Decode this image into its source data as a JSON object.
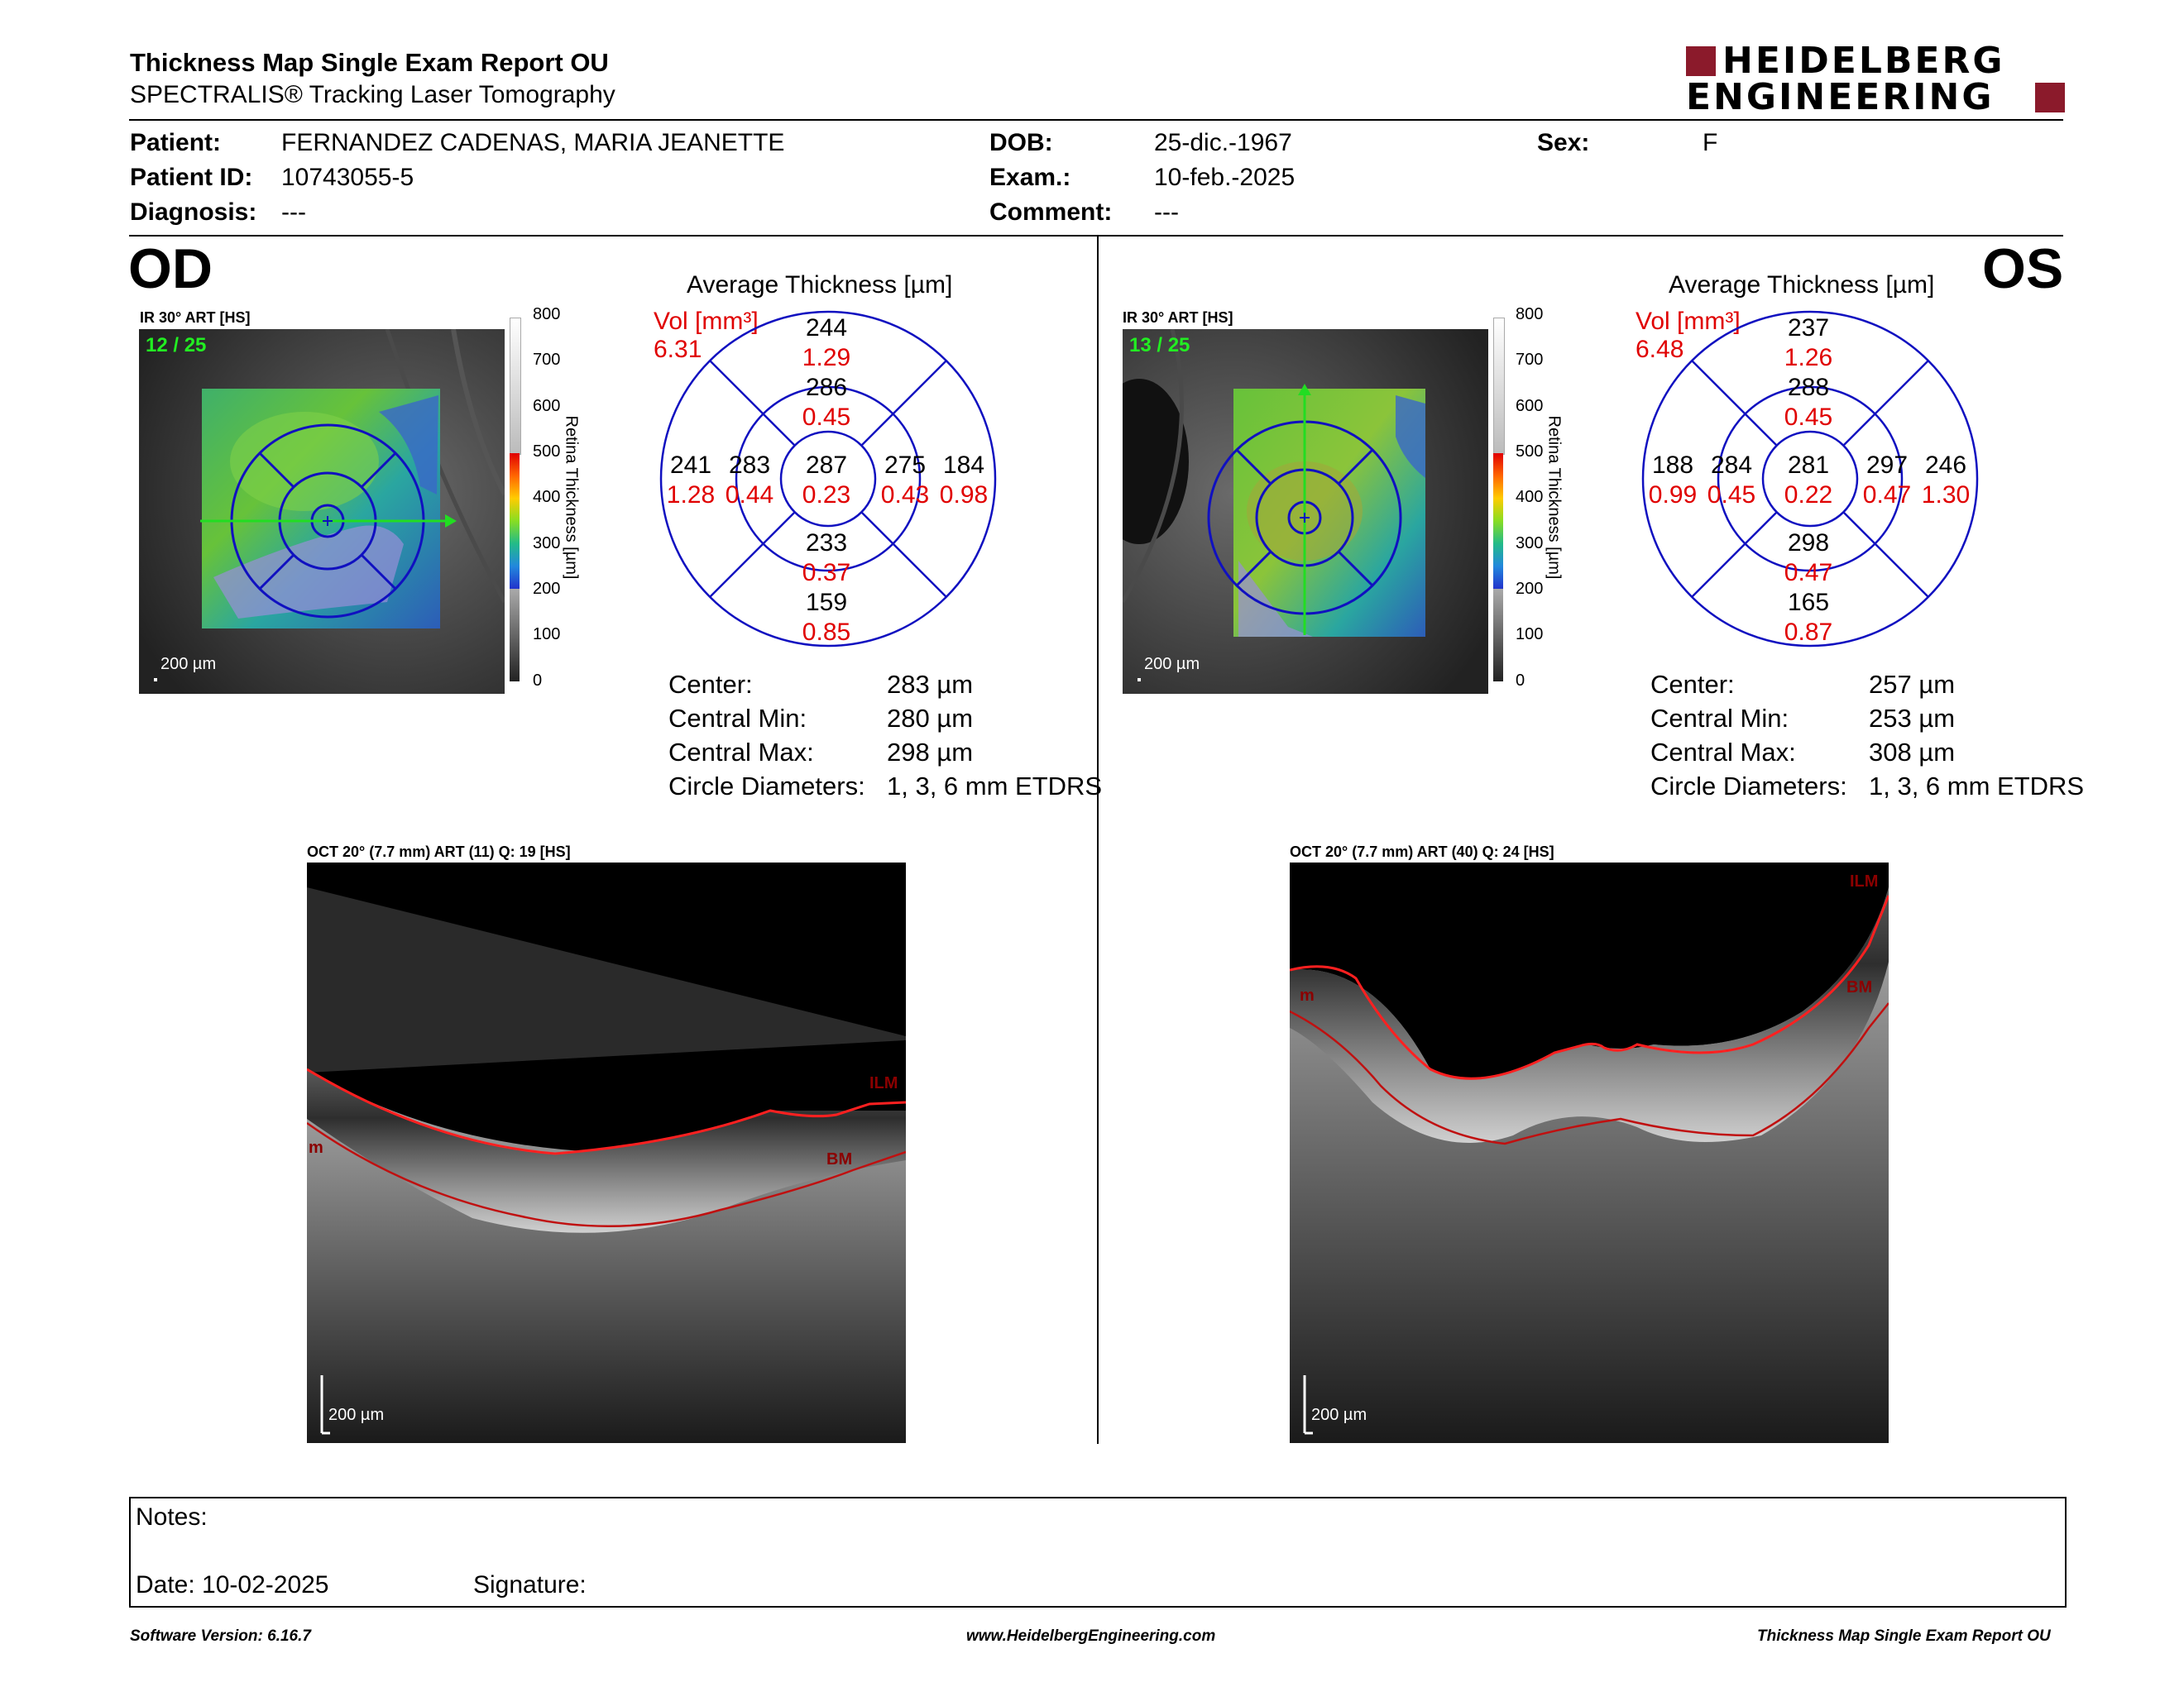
{
  "header": {
    "title": "Thickness Map Single Exam Report OU",
    "subtitle": "SPECTRALIS® Tracking Laser Tomography",
    "logo_line1": "HEIDELBERG",
    "logo_line2": "ENGINEERING",
    "logo_color": "#8b1a2b"
  },
  "patient": {
    "patient_label": "Patient:",
    "patient_value": "FERNANDEZ CADENAS, MARIA JEANETTE",
    "id_label": "Patient ID:",
    "id_value": "10743055-5",
    "diagnosis_label": "Diagnosis:",
    "diagnosis_value": "---",
    "dob_label": "DOB:",
    "dob_value": "25-dic.-1967",
    "exam_label": "Exam.:",
    "exam_value": "10-feb.-2025",
    "comment_label": "Comment:",
    "comment_value": "---",
    "sex_label": "Sex:",
    "sex_value": "F"
  },
  "od": {
    "eye": "OD",
    "ir_label": "IR 30° ART [HS]",
    "slice": "12 / 25",
    "scale": "200 µm",
    "avg_title": "Average Thickness [µm]",
    "vol_label": "Vol [mm³]",
    "vol_value": "6.31",
    "etdrs": {
      "outer_sup": "244",
      "outer_sup_v": "1.29",
      "inner_sup": "286",
      "inner_sup_v": "0.45",
      "outer_left": "241",
      "outer_left_v": "1.28",
      "inner_left": "283",
      "inner_left_v": "0.44",
      "center": "287",
      "center_v": "0.23",
      "inner_right": "275",
      "inner_right_v": "0.43",
      "outer_right": "184",
      "outer_right_v": "0.98",
      "inner_inf": "233",
      "inner_inf_v": "0.37",
      "outer_inf": "159",
      "outer_inf_v": "0.85"
    },
    "stats": {
      "center_l": "Center:",
      "center_v": "283 µm",
      "min_l": "Central Min:",
      "min_v": "280 µm",
      "max_l": "Central Max:",
      "max_v": "298 µm",
      "diam_l": "Circle Diameters:",
      "diam_v": "1, 3, 6 mm ETDRS"
    },
    "oct_label": "OCT 20° (7.7 mm) ART (11) Q: 19 [HS]",
    "oct_scale": "200 µm",
    "ilm": "ILM",
    "bm": "BM"
  },
  "os": {
    "eye": "OS",
    "ir_label": "IR 30° ART [HS]",
    "slice": "13 / 25",
    "scale": "200 µm",
    "avg_title": "Average Thickness [µm]",
    "vol_label": "Vol [mm³]",
    "vol_value": "6.48",
    "etdrs": {
      "outer_sup": "237",
      "outer_sup_v": "1.26",
      "inner_sup": "288",
      "inner_sup_v": "0.45",
      "outer_left": "188",
      "outer_left_v": "0.99",
      "inner_left": "284",
      "inner_left_v": "0.45",
      "center": "281",
      "center_v": "0.22",
      "inner_right": "297",
      "inner_right_v": "0.47",
      "outer_right": "246",
      "outer_right_v": "1.30",
      "inner_inf": "298",
      "inner_inf_v": "0.47",
      "outer_inf": "165",
      "outer_inf_v": "0.87"
    },
    "stats": {
      "center_l": "Center:",
      "center_v": "257 µm",
      "min_l": "Central Min:",
      "min_v": "253 µm",
      "max_l": "Central Max:",
      "max_v": "308 µm",
      "diam_l": "Circle Diameters:",
      "diam_v": "1, 3, 6 mm ETDRS"
    },
    "oct_label": "OCT 20° (7.7 mm) ART (40) Q: 24 [HS]",
    "oct_scale": "200 µm",
    "ilm": "ILM",
    "bm": "BM"
  },
  "colorbar": {
    "ticks": [
      "800",
      "700",
      "600",
      "500",
      "400",
      "300",
      "200",
      "100",
      "0"
    ],
    "label": "Retina Thickness [µm]"
  },
  "notes": {
    "notes_label": "Notes:",
    "date_label": "Date: 10-02-2025",
    "signature_label": "Signature:"
  },
  "footer": {
    "version": "Software Version: 6.16.7",
    "website": "www.HeidelbergEngineering.com",
    "report": "Thickness Map Single Exam Report OU"
  }
}
